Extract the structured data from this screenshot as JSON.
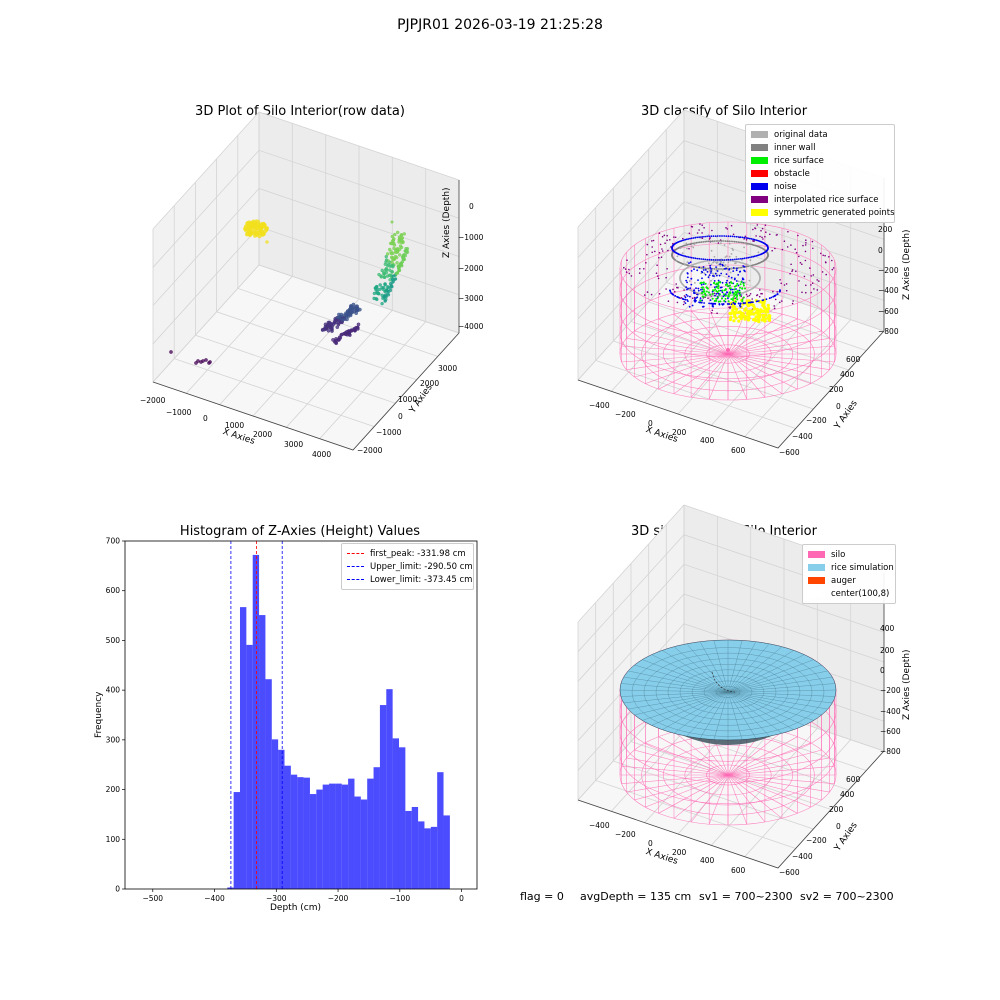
{
  "suptitle": "PJPJR01 2026-03-19 21:25:28",
  "chart_data": [
    {
      "type": "scatter",
      "title": "3D Plot of Silo Interior(row data)",
      "xlabel": "X Axies",
      "ylabel": "Y Axies",
      "zlabel": "Z Axies (Depth)",
      "x_ticks": [
        "−2000",
        "−1000",
        "0",
        "1000",
        "2000",
        "3000",
        "4000"
      ],
      "y_ticks": [
        "−2000",
        "−1000",
        "0",
        "1000",
        "2000",
        "3000"
      ],
      "z_ticks": [
        "0",
        "−1000",
        "−2000",
        "−3000",
        "−4000"
      ],
      "clusters": [
        {
          "color": "#f2e01d",
          "x": -1500,
          "y": 1200,
          "z": 0
        },
        {
          "color": "#7ad151",
          "x": 3400,
          "y": 2900,
          "z": -1500
        },
        {
          "color": "#22a884",
          "x": 3600,
          "y": 2500,
          "z": -2400
        },
        {
          "color": "#414487",
          "x": 1800,
          "y": 500,
          "z": -3700
        },
        {
          "color": "#440154",
          "x": -1500,
          "y": -1500,
          "z": -4000
        }
      ]
    },
    {
      "type": "scatter",
      "title": "3D classify of Silo Interior",
      "xlabel": "X Axies",
      "ylabel": "Y Axies",
      "zlabel": "Z Axies (Depth)",
      "x_ticks": [
        "−400",
        "−200",
        "0",
        "200",
        "400",
        "600"
      ],
      "y_ticks": [
        "−600",
        "−400",
        "−200",
        "0",
        "200",
        "400",
        "600"
      ],
      "z_ticks": [
        "200",
        "0",
        "−200",
        "−400",
        "−600",
        "−800"
      ],
      "legend": [
        {
          "label": "original data",
          "color": "#b0b0b0"
        },
        {
          "label": "inner wall",
          "color": "#808080"
        },
        {
          "label": "rice surface",
          "color": "#00ee00"
        },
        {
          "label": "obstacle",
          "color": "#ff0000"
        },
        {
          "label": "noise",
          "color": "#0000ee"
        },
        {
          "label": "interpolated rice surface",
          "color": "#800080"
        },
        {
          "label": "symmetric generated points",
          "color": "#ffff00"
        }
      ]
    },
    {
      "type": "bar",
      "title": "Histogram of Z-Axies (Height) Values",
      "xlabel": "Depth (cm)",
      "ylabel": "Frequency",
      "xlim": [
        -545,
        25
      ],
      "ylim": [
        0,
        700
      ],
      "x_ticks": [
        -500,
        -400,
        -300,
        -200,
        -100,
        0
      ],
      "x_tick_labels": [
        "−500",
        "−400",
        "−300",
        "−200",
        "−100",
        "0"
      ],
      "y_ticks": [
        0,
        100,
        200,
        300,
        400,
        500,
        600,
        700
      ],
      "bar_color": "#0000ff",
      "bins": [
        [
          -379.4,
          -369.1,
          3
        ],
        [
          -369.1,
          -358.8,
          195
        ],
        [
          -358.8,
          -348.5,
          567
        ],
        [
          -348.5,
          -338.2,
          491
        ],
        [
          -338.2,
          -327.9,
          672
        ],
        [
          -327.9,
          -317.6,
          551
        ],
        [
          -317.6,
          -307.3,
          422
        ],
        [
          -307.3,
          -297.0,
          301
        ],
        [
          -297.0,
          -286.7,
          280
        ],
        [
          -286.7,
          -276.4,
          248
        ],
        [
          -276.4,
          -266.1,
          230
        ],
        [
          -266.1,
          -255.8,
          225
        ],
        [
          -255.8,
          -245.5,
          224
        ],
        [
          -245.5,
          -235.2,
          191
        ],
        [
          -235.2,
          -224.9,
          200
        ],
        [
          -224.9,
          -214.6,
          210
        ],
        [
          -214.6,
          -204.3,
          212
        ],
        [
          -204.3,
          -194.0,
          212
        ],
        [
          -194.0,
          -183.7,
          210
        ],
        [
          -183.7,
          -173.4,
          222
        ],
        [
          -173.4,
          -163.1,
          186
        ],
        [
          -163.1,
          -152.8,
          180
        ],
        [
          -152.8,
          -142.5,
          222
        ],
        [
          -142.5,
          -132.2,
          245
        ],
        [
          -132.2,
          -121.9,
          370
        ],
        [
          -121.9,
          -111.6,
          402
        ],
        [
          -111.6,
          -101.3,
          303
        ],
        [
          -101.3,
          -91.0,
          285
        ],
        [
          -91.0,
          -80.7,
          157
        ],
        [
          -80.7,
          -70.4,
          165
        ],
        [
          -70.4,
          -60.1,
          136
        ],
        [
          -60.1,
          -49.8,
          122
        ],
        [
          -49.8,
          -39.5,
          125
        ],
        [
          -39.5,
          -29.2,
          235
        ],
        [
          -29.2,
          -18.9,
          148
        ]
      ],
      "lines": [
        {
          "label": "first_peak: -331.98 cm",
          "x": -331.98,
          "color": "#ff0000"
        },
        {
          "label": "Upper_limit: -290.50 cm",
          "x": -290.5,
          "color": "#0000ff"
        },
        {
          "label": "Lower_limit: -373.45 cm",
          "x": -373.45,
          "color": "#0000ff"
        }
      ]
    },
    {
      "type": "surface",
      "title": "3D simulation of Silo Interior",
      "xlabel": "X Axies",
      "ylabel": "Y Axies",
      "zlabel": "Z Axies (Depth)",
      "x_ticks": [
        "−400",
        "−200",
        "0",
        "200",
        "400",
        "600"
      ],
      "y_ticks": [
        "−600",
        "−400",
        "−200",
        "0",
        "200",
        "400",
        "600"
      ],
      "z_ticks": [
        "400",
        "200",
        "0",
        "−200",
        "−400",
        "−600",
        "−800"
      ],
      "legend": [
        {
          "label": "silo",
          "color": "#ff69b4"
        },
        {
          "label": "rice simulation",
          "color": "#87ceeb"
        },
        {
          "label": "auger",
          "color": "#ff4500"
        },
        {
          "label": "center(100,8)",
          "color": "#ffffff"
        }
      ]
    }
  ],
  "status": {
    "flag": "flag = 0",
    "avg_depth": "avgDepth = 135 cm",
    "sv1": "sv1 = 700~2300",
    "sv2": "sv2 = 700~2300"
  }
}
